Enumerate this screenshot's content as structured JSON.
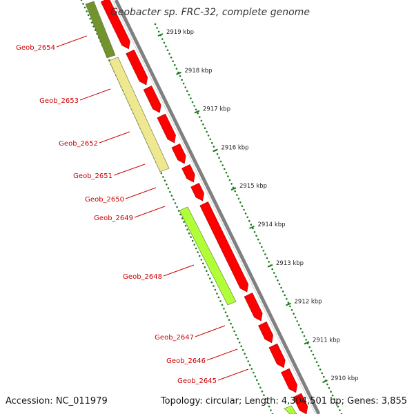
{
  "header": {
    "title": "Geobacter sp. FRC-32, complete genome"
  },
  "footer": {
    "accession": "Accession: NC_011979",
    "summary": "Topology: circular; Length: 4,304,501 bp; Genes: 3,855"
  },
  "ticks": [
    {
      "label": "2919 kbp"
    },
    {
      "label": "2918 kbp"
    },
    {
      "label": "2917 kbp"
    },
    {
      "label": "2916 kbp"
    },
    {
      "label": "2915 kbp"
    },
    {
      "label": "2914 kbp"
    },
    {
      "label": "2913 kbp"
    },
    {
      "label": "2912 kbp"
    },
    {
      "label": "2911 kbp"
    },
    {
      "label": "2910 kbp"
    }
  ],
  "genes": [
    {
      "label": "Geob_2654"
    },
    {
      "label": "Geob_2653"
    },
    {
      "label": "Geob_2652"
    },
    {
      "label": "Geob_2651"
    },
    {
      "label": "Geob_2650"
    },
    {
      "label": "Geob_2649"
    },
    {
      "label": "Geob_2648"
    },
    {
      "label": "Geob_2647"
    },
    {
      "label": "Geob_2646"
    },
    {
      "label": "Geob_2645"
    }
  ],
  "colors": {
    "cds": "#ff0000",
    "backbone": "#808080",
    "tick": "#1a7a1a",
    "label": "#cc0000",
    "cog_dark_olive": "#6b8e23",
    "cog_khaki": "#f0e68c",
    "cog_lime": "#adff2f"
  }
}
